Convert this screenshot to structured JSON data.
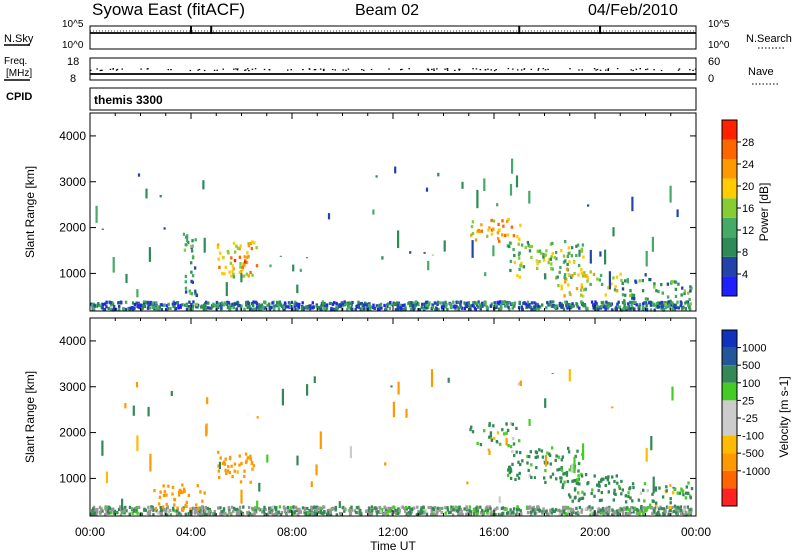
{
  "header": {
    "title": "Syowa East (fitACF)",
    "beam": "Beam 02",
    "date": "04/Feb/2010"
  },
  "top_panels": {
    "nsky_label": "N.Sky",
    "nsky_ticks": [
      "10^5",
      "10^0"
    ],
    "nsearch_label": "N.Search",
    "nsearch_ticks": [
      "10^5",
      "10^0"
    ],
    "freq_label_1": "Freq.",
    "freq_label_2": "[MHz]",
    "freq_ticks": [
      "18",
      "8"
    ],
    "nave_label": "Nave",
    "nave_ticks": [
      "60",
      "0"
    ],
    "cpid_label": "CPID",
    "cpid_value": "themis 3300"
  },
  "colors": {
    "power_scale": [
      "#2020ff",
      "#2244aa",
      "#2e8b57",
      "#44aa66",
      "#88cc33",
      "#ffcc00",
      "#ff9900",
      "#ff6600",
      "#ff2200"
    ],
    "velocity_scale": [
      "#ff2222",
      "#ff6600",
      "#ff9900",
      "#ffbb00",
      "#cccccc",
      "#cccccc",
      "#44cc22",
      "#338855",
      "#225599",
      "#1133bb"
    ],
    "ground_scatter": "#999999"
  },
  "chart_data": [
    {
      "type": "heatmap",
      "title": "",
      "xlabel": "",
      "ylabel": "Slant Range [km]",
      "ylim": [
        180,
        4500
      ],
      "y_ticks": [
        "1000",
        "2000",
        "3000",
        "4000"
      ],
      "y_tick_values": [
        1000,
        2000,
        3000,
        4000
      ],
      "x_range_hours": [
        0,
        24
      ],
      "colorbar_label": "Power [dB]",
      "colorbar_ticks": [
        "4",
        "8",
        "12",
        "16",
        "20",
        "24",
        "28"
      ],
      "colorbar_range": [
        0,
        32
      ],
      "scatter_regions": [
        {
          "t": [
            0.0,
            23.8
          ],
          "r": [
            200,
            380
          ],
          "value": 8
        },
        {
          "t": [
            3.7,
            4.2
          ],
          "r": [
            300,
            1800
          ],
          "value": 10
        },
        {
          "t": [
            5.0,
            6.6
          ],
          "r": [
            900,
            1700
          ],
          "value": 20
        },
        {
          "t": [
            5.5,
            6.2
          ],
          "r": [
            1000,
            1400
          ],
          "value": 26
        },
        {
          "t": [
            15.0,
            17.0
          ],
          "r": [
            1700,
            2200
          ],
          "value": 22
        },
        {
          "t": [
            16.5,
            19.5
          ],
          "r": [
            900,
            1700
          ],
          "value": 14
        },
        {
          "t": [
            18.5,
            21.0
          ],
          "r": [
            500,
            1100
          ],
          "value": 18
        },
        {
          "t": [
            21.0,
            23.8
          ],
          "r": [
            300,
            900
          ],
          "value": 10
        }
      ]
    },
    {
      "type": "heatmap",
      "title": "",
      "xlabel": "Time UT",
      "ylabel": "Slant Range [km]",
      "ylim": [
        180,
        4500
      ],
      "y_ticks": [
        "1000",
        "2000",
        "3000",
        "4000"
      ],
      "y_tick_values": [
        1000,
        2000,
        3000,
        4000
      ],
      "x_ticks": [
        "00:00",
        "04:00",
        "08:00",
        "12:00",
        "16:00",
        "20:00",
        "00:00"
      ],
      "x_tick_hours": [
        0,
        4,
        8,
        12,
        16,
        20,
        24
      ],
      "colorbar_label": "Velocity [m s-1]",
      "colorbar_ticks": [
        "1000",
        "500",
        "100",
        "25",
        "-25",
        "-100",
        "-500",
        "-1000"
      ],
      "scatter_regions": [
        {
          "t": [
            0.0,
            23.8
          ],
          "r": [
            200,
            380
          ],
          "value": 200
        },
        {
          "t": [
            2.5,
            4.5
          ],
          "r": [
            300,
            900
          ],
          "value": -300
        },
        {
          "t": [
            5.0,
            6.6
          ],
          "r": [
            900,
            1600
          ],
          "value": -300
        },
        {
          "t": [
            15.0,
            17.0
          ],
          "r": [
            1700,
            2200
          ],
          "value": 150
        },
        {
          "t": [
            16.5,
            19.5
          ],
          "r": [
            900,
            1700
          ],
          "value": 200
        },
        {
          "t": [
            18.5,
            21.0
          ],
          "r": [
            500,
            1100
          ],
          "value": 250
        },
        {
          "t": [
            21.0,
            23.8
          ],
          "r": [
            300,
            900
          ],
          "value": 150
        }
      ]
    }
  ]
}
